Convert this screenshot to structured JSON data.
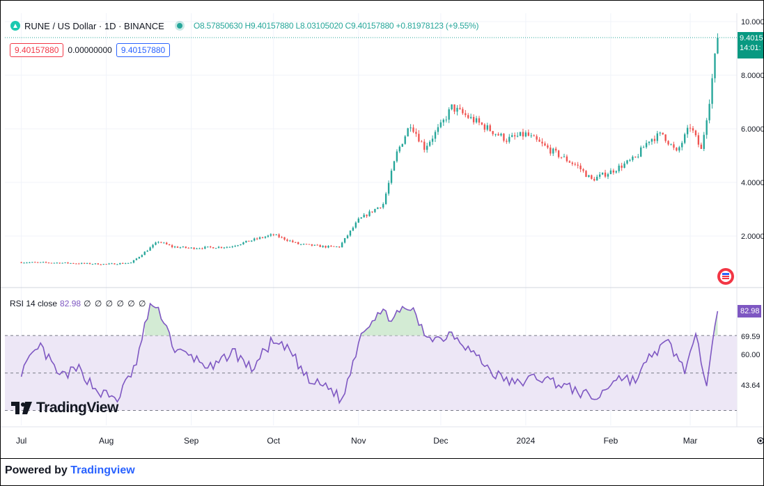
{
  "legend": {
    "symbol": "RUNE / US Dollar · 1D · BINANCE",
    "ohlc_open": "O8.57850630",
    "ohlc_high": "H9.40157880",
    "ohlc_low": "L8.03105020",
    "ohlc_close": "C9.40157880",
    "ohlc_change": "+0.81978123 (+9.55%)"
  },
  "value_boxes": {
    "bid": "9.40157880",
    "spread": "0.00000000",
    "ask": "9.40157880"
  },
  "rsi_legend": {
    "label": "RSI 14 close",
    "value": "82.98",
    "extras": "∅ ∅ ∅ ∅ ∅ ∅"
  },
  "price_tag": {
    "price": "9.4015",
    "countdown": "14:01:"
  },
  "rsi_tag": "82.98",
  "watermark": "TradingView",
  "footer": {
    "prefix": "Powered by ",
    "brand": "Tradingview"
  },
  "colors": {
    "up": "#26a69a",
    "down": "#ef5350",
    "rsi_line": "#7e57c2",
    "rsi_band": "#ede7f6",
    "overbought_fill": "#c8e6c9",
    "grid": "#f0f3fa",
    "axis_text": "#131722"
  },
  "chart_data": [
    {
      "type": "candlestick",
      "title": "RUNE / US Dollar · 1D · BINANCE",
      "x_tick_labels": [
        "Jul",
        "Aug",
        "Sep",
        "Oct",
        "Nov",
        "Dec",
        "2024",
        "Feb",
        "Mar"
      ],
      "y_tick_labels": [
        "10.0000",
        "8.0000",
        "6.0000",
        "4.0000",
        "2.0000"
      ],
      "ylim": [
        0,
        10
      ],
      "grid": true,
      "last_price": 9.4015788,
      "series": [
        {
          "points": [
            [
              "2023-07-01",
              1.02
            ],
            [
              "2023-07-15",
              1.0
            ],
            [
              "2023-08-01",
              0.95
            ],
            [
              "2023-08-10",
              1.0
            ],
            [
              "2023-08-20",
              1.8
            ],
            [
              "2023-08-25",
              1.6
            ],
            [
              "2023-09-01",
              1.55
            ],
            [
              "2023-09-15",
              1.6
            ],
            [
              "2023-09-25",
              1.9
            ],
            [
              "2023-10-01",
              2.05
            ],
            [
              "2023-10-10",
              1.7
            ],
            [
              "2023-10-20",
              1.6
            ],
            [
              "2023-10-25",
              1.6
            ],
            [
              "2023-11-01",
              2.6
            ],
            [
              "2023-11-10",
              3.2
            ],
            [
              "2023-11-15",
              5.1
            ],
            [
              "2023-11-20",
              6.2
            ],
            [
              "2023-11-25",
              5.3
            ],
            [
              "2023-12-01",
              6.1
            ],
            [
              "2023-12-05",
              6.8
            ],
            [
              "2023-12-15",
              6.2
            ],
            [
              "2023-12-25",
              5.6
            ],
            [
              "2024-01-01",
              5.8
            ],
            [
              "2024-01-10",
              5.2
            ],
            [
              "2024-01-20",
              4.6
            ],
            [
              "2024-01-25",
              4.1
            ],
            [
              "2024-02-01",
              4.4
            ],
            [
              "2024-02-10",
              4.9
            ],
            [
              "2024-02-15",
              5.6
            ],
            [
              "2024-02-20",
              5.8
            ],
            [
              "2024-02-25",
              5.1
            ],
            [
              "2024-03-01",
              6.1
            ],
            [
              "2024-03-05",
              5.2
            ],
            [
              "2024-03-08",
              7.1
            ],
            [
              "2024-03-11",
              9.4
            ]
          ]
        }
      ]
    },
    {
      "type": "line",
      "title": "RSI 14 close",
      "y_tick_labels": [
        "69.59",
        "60.00",
        "43.64"
      ],
      "ylim": [
        25,
        90
      ],
      "levels": [
        70,
        50,
        30
      ],
      "last_value": 82.98,
      "series": [
        {
          "name": "RSI 14 close",
          "points": [
            [
              "2023-07-01",
              51
            ],
            [
              "2023-07-08",
              64
            ],
            [
              "2023-07-15",
              48
            ],
            [
              "2023-07-22",
              52
            ],
            [
              "2023-07-29",
              40
            ],
            [
              "2023-08-05",
              36
            ],
            [
              "2023-08-12",
              55
            ],
            [
              "2023-08-17",
              87
            ],
            [
              "2023-08-22",
              79
            ],
            [
              "2023-08-26",
              62
            ],
            [
              "2023-09-02",
              58
            ],
            [
              "2023-09-09",
              52
            ],
            [
              "2023-09-16",
              62
            ],
            [
              "2023-09-23",
              52
            ],
            [
              "2023-09-30",
              66
            ],
            [
              "2023-10-07",
              62
            ],
            [
              "2023-10-14",
              45
            ],
            [
              "2023-10-21",
              43
            ],
            [
              "2023-10-26",
              35
            ],
            [
              "2023-11-02",
              72
            ],
            [
              "2023-11-08",
              82
            ],
            [
              "2023-11-14",
              80
            ],
            [
              "2023-11-20",
              85
            ],
            [
              "2023-11-25",
              71
            ],
            [
              "2023-12-01",
              68
            ],
            [
              "2023-12-05",
              72
            ],
            [
              "2023-12-12",
              62
            ],
            [
              "2023-12-20",
              50
            ],
            [
              "2023-12-28",
              44
            ],
            [
              "2024-01-05",
              48
            ],
            [
              "2024-01-12",
              45
            ],
            [
              "2024-01-20",
              40
            ],
            [
              "2024-01-27",
              36
            ],
            [
              "2024-02-03",
              48
            ],
            [
              "2024-02-10",
              46
            ],
            [
              "2024-02-16",
              60
            ],
            [
              "2024-02-22",
              66
            ],
            [
              "2024-02-28",
              52
            ],
            [
              "2024-03-03",
              68
            ],
            [
              "2024-03-07",
              46
            ],
            [
              "2024-03-09",
              68
            ],
            [
              "2024-03-11",
              83
            ]
          ]
        }
      ]
    }
  ]
}
